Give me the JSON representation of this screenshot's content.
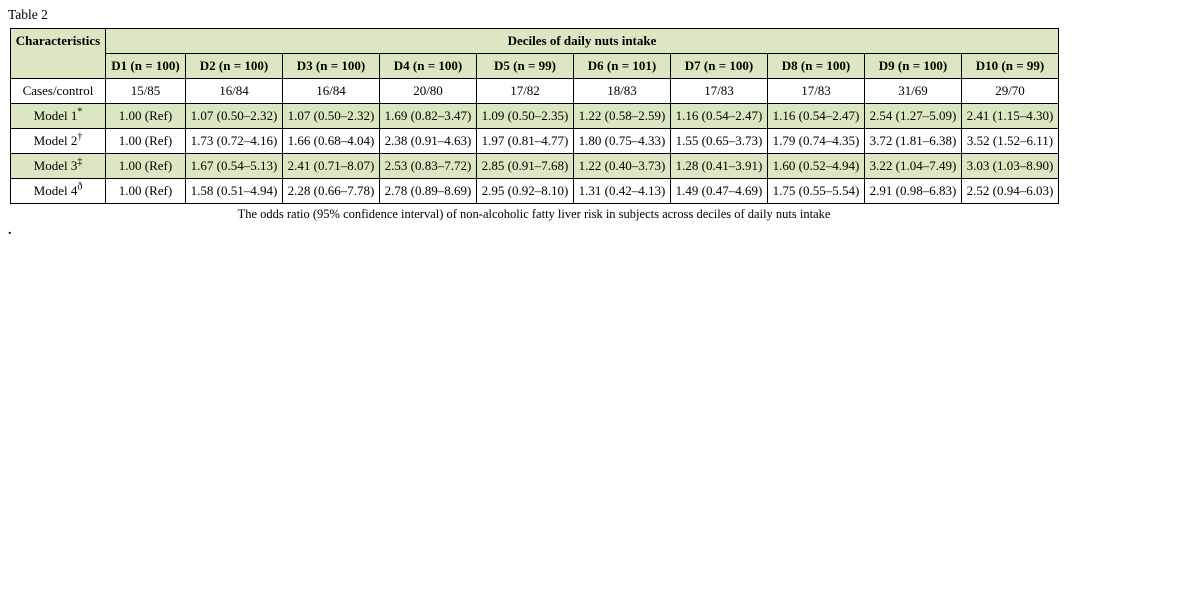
{
  "page": {
    "title": "Table 2",
    "caption": "The odds ratio (95% confidence interval) of non-alcoholic fatty liver risk in subjects across deciles of daily nuts intake",
    "stray_dot": "."
  },
  "table": {
    "shade_color": "#dbe7c2",
    "corner_header": "Characteristics",
    "group_header": "Deciles of daily nuts intake",
    "columns": [
      "D1 (n = 100)",
      "D2 (n = 100)",
      "D3 (n = 100)",
      "D4 (n = 100)",
      "D5 (n = 99)",
      "D6 (n = 101)",
      "D7 (n = 100)",
      "D8 (n = 100)",
      "D9 (n = 100)",
      "D10 (n = 99)"
    ],
    "rows": [
      {
        "label": "Cases/control",
        "sup": "",
        "shaded": false,
        "cells": [
          "15/85",
          "16/84",
          "16/84",
          "20/80",
          "17/82",
          "18/83",
          "17/83",
          "17/83",
          "31/69",
          "29/70"
        ]
      },
      {
        "label": "Model 1",
        "sup": "*",
        "shaded": true,
        "cells": [
          "1.00 (Ref)",
          "1.07 (0.50–2.32)",
          "1.07 (0.50–2.32)",
          "1.69 (0.82–3.47)",
          "1.09 (0.50–2.35)",
          "1.22 (0.58–2.59)",
          "1.16 (0.54–2.47)",
          "1.16 (0.54–2.47)",
          "2.54 (1.27–5.09)",
          "2.41 (1.15–4.30)"
        ]
      },
      {
        "label": "Model 2",
        "sup": "†",
        "shaded": false,
        "cells": [
          "1.00 (Ref)",
          "1.73 (0.72–4.16)",
          "1.66 (0.68–4.04)",
          "2.38 (0.91–4.63)",
          "1.97 (0.81–4.77)",
          "1.80 (0.75–4.33)",
          "1.55 (0.65–3.73)",
          "1.79 (0.74–4.35)",
          "3.72 (1.81–6.38)",
          "3.52 (1.52–6.11)"
        ]
      },
      {
        "label": "Model 3",
        "sup": "‡",
        "shaded": true,
        "cells": [
          "1.00 (Ref)",
          "1.67 (0.54–5.13)",
          "2.41 (0.71–8.07)",
          "2.53 (0.83–7.72)",
          "2.85 (0.91–7.68)",
          "1.22 (0.40–3.73)",
          "1.28 (0.41–3.91)",
          "1.60 (0.52–4.94)",
          "3.22 (1.04–7.49)",
          "3.03 (1.03–8.90)"
        ]
      },
      {
        "label": "Model 4",
        "sup": "ð",
        "shaded": false,
        "cells": [
          "1.00 (Ref)",
          "1.58 (0.51–4.94)",
          "2.28 (0.66–7.78)",
          "2.78 (0.89–8.69)",
          "2.95 (0.92–8.10)",
          "1.31 (0.42–4.13)",
          "1.49 (0.47–4.69)",
          "1.75 (0.55–5.54)",
          "2.91 (0.98–6.83)",
          "2.52 (0.94–6.03)"
        ]
      }
    ]
  }
}
